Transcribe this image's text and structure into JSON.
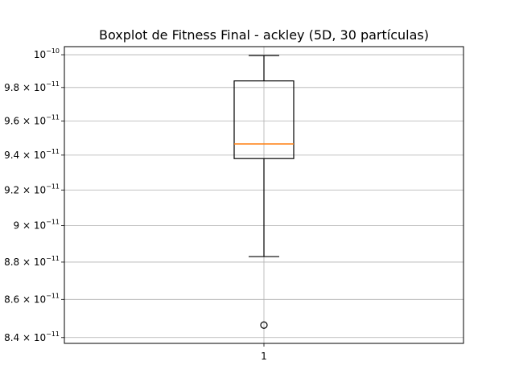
{
  "chart_data": {
    "type": "boxplot",
    "title": "Boxplot de Fitness Final - ackley (5D, 30 partículas)",
    "xlabel": "",
    "ylabel": "",
    "categories": [
      "1"
    ],
    "yscale": "log",
    "ylim": [
      8.37e-11,
      1.005e-10
    ],
    "yticks": [
      {
        "value": 8.4e-11,
        "mantissa": "8.4",
        "exponent": "−11"
      },
      {
        "value": 8.6e-11,
        "mantissa": "8.6",
        "exponent": "−11"
      },
      {
        "value": 8.8e-11,
        "mantissa": "8.8",
        "exponent": "−11"
      },
      {
        "value": 9e-11,
        "mantissa": "9",
        "exponent": "−11"
      },
      {
        "value": 9.2e-11,
        "mantissa": "9.2",
        "exponent": "−11"
      },
      {
        "value": 9.4e-11,
        "mantissa": "9.4",
        "exponent": "−11"
      },
      {
        "value": 9.6e-11,
        "mantissa": "9.6",
        "exponent": "−11"
      },
      {
        "value": 9.8e-11,
        "mantissa": "9.8",
        "exponent": "−11"
      },
      {
        "value": 1e-10,
        "mantissa": "10",
        "exponent": "−10",
        "power_only": true
      }
    ],
    "series": [
      {
        "whisker_low": 8.83e-11,
        "q1": 9.38e-11,
        "median": 9.465e-11,
        "q3": 9.84e-11,
        "whisker_high": 9.995e-11,
        "outliers": [
          8.465e-11
        ]
      }
    ],
    "grid": true,
    "colors": {
      "box": "#000000",
      "median": "#ff7f0e",
      "grid": "#b0b0b0"
    }
  }
}
